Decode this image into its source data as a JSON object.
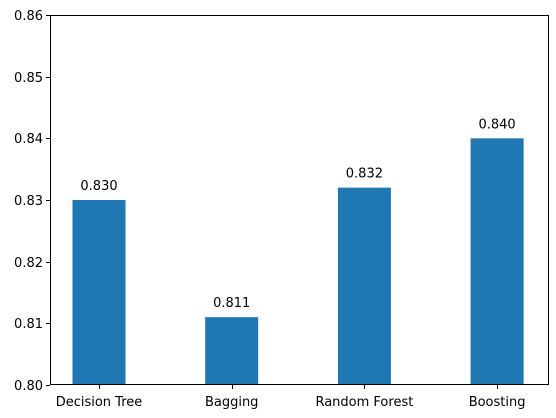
{
  "chart_data": {
    "type": "bar",
    "categories": [
      "Decision Tree",
      "Bagging",
      "Random Forest",
      "Boosting"
    ],
    "values": [
      0.83,
      0.811,
      0.832,
      0.84
    ],
    "value_labels": [
      "0.830",
      "0.811",
      "0.832",
      "0.840"
    ],
    "title": "",
    "xlabel": "",
    "ylabel": "",
    "ylim": [
      0.8,
      0.86
    ],
    "yticks": [
      0.8,
      0.81,
      0.82,
      0.83,
      0.84,
      0.85,
      0.86
    ],
    "ytick_labels": [
      "0.80",
      "0.81",
      "0.82",
      "0.83",
      "0.84",
      "0.85",
      "0.86"
    ],
    "grid": false,
    "legend": "none",
    "bar_color": "#1f77b4"
  }
}
